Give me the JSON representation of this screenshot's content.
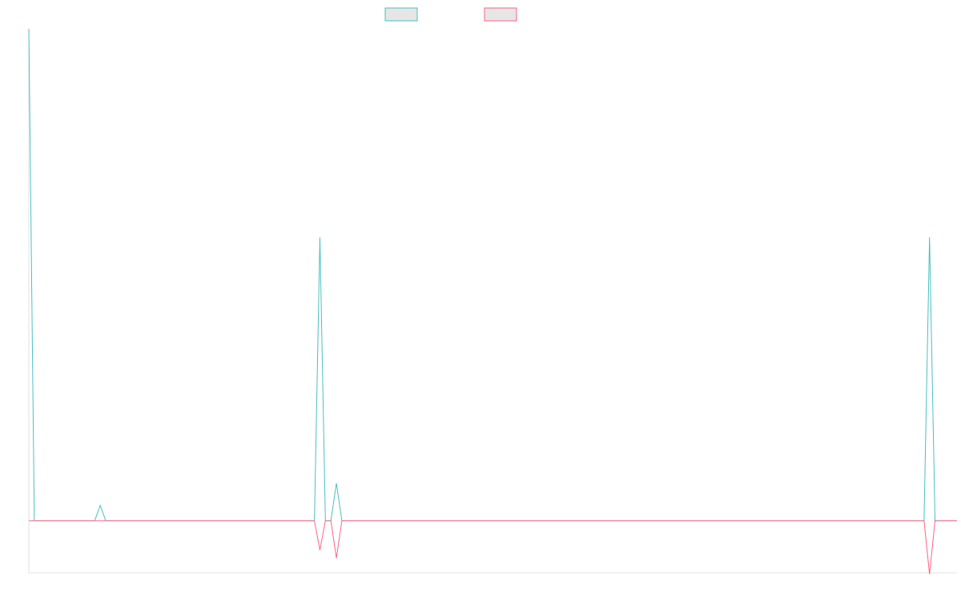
{
  "chart_data": {
    "type": "line",
    "ylim": [
      -10.6,
      100
    ],
    "legend": "top",
    "legend_box_fill": "#e6e6e6",
    "series": [
      {
        "color": "#4bc0c0",
        "values": [
          100,
          0,
          0,
          0,
          0,
          0,
          0,
          0,
          0,
          0,
          0,
          0,
          0,
          3.1,
          0,
          0,
          0,
          0,
          0,
          0,
          0,
          0,
          0,
          0,
          0,
          0,
          0,
          0,
          0,
          0,
          0,
          0,
          0,
          0,
          0,
          0,
          0,
          0,
          0,
          0,
          0,
          0,
          0,
          0,
          0,
          0,
          0,
          0,
          0,
          0,
          0,
          0,
          0,
          57.6,
          0,
          0,
          7.6,
          0,
          0,
          0,
          0,
          0,
          0,
          0,
          0,
          0,
          0,
          0,
          0,
          0,
          0,
          0,
          0,
          0,
          0,
          0,
          0,
          0,
          0,
          0,
          0,
          0,
          0,
          0,
          0,
          0,
          0,
          0,
          0,
          0,
          0,
          0,
          0,
          0,
          0,
          0,
          0,
          0,
          0,
          0,
          0,
          0,
          0,
          0,
          0,
          0,
          0,
          0,
          0,
          0,
          0,
          0,
          0,
          0,
          0,
          0,
          0,
          0,
          0,
          0,
          0,
          0,
          0,
          0,
          0,
          0,
          0,
          0,
          0,
          0,
          0,
          0,
          0,
          0,
          0,
          0,
          0,
          0,
          0,
          0,
          0,
          0,
          0,
          0,
          0,
          0,
          0,
          0,
          0,
          0,
          0,
          0,
          0,
          0,
          0,
          0,
          0,
          0,
          0,
          0,
          0,
          0,
          0,
          0,
          57.6,
          0,
          0,
          0,
          0,
          0
        ]
      },
      {
        "color": "#ff6384",
        "values": [
          0,
          0,
          0,
          0,
          0,
          0,
          0,
          0,
          0,
          0,
          0,
          0,
          0,
          0,
          0,
          0,
          0,
          0,
          0,
          0,
          0,
          0,
          0,
          0,
          0,
          0,
          0,
          0,
          0,
          0,
          0,
          0,
          0,
          0,
          0,
          0,
          0,
          0,
          0,
          0,
          0,
          0,
          0,
          0,
          0,
          0,
          0,
          0,
          0,
          0,
          0,
          0,
          0,
          -6,
          0,
          0,
          -7.6,
          0,
          0,
          0,
          0,
          0,
          0,
          0,
          0,
          0,
          0,
          0,
          0,
          0,
          0,
          0,
          0,
          0,
          0,
          0,
          0,
          0,
          0,
          0,
          0,
          0,
          0,
          0,
          0,
          0,
          0,
          0,
          0,
          0,
          0,
          0,
          0,
          0,
          0,
          0,
          0,
          0,
          0,
          0,
          0,
          0,
          0,
          0,
          0,
          0,
          0,
          0,
          0,
          0,
          0,
          0,
          0,
          0,
          0,
          0,
          0,
          0,
          0,
          0,
          0,
          0,
          0,
          0,
          0,
          0,
          0,
          0,
          0,
          0,
          0,
          0,
          0,
          0,
          0,
          0,
          0,
          0,
          0,
          0,
          0,
          0,
          0,
          0,
          0,
          0,
          0,
          0,
          0,
          0,
          0,
          0,
          0,
          0,
          0,
          0,
          0,
          0,
          0,
          0,
          0,
          0,
          0,
          0,
          -10.9,
          0,
          0,
          0,
          0,
          0
        ]
      }
    ]
  }
}
